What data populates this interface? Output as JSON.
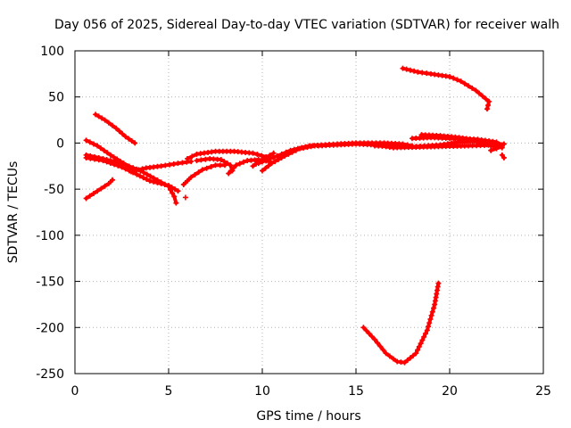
{
  "chart_data": {
    "type": "scatter",
    "title": "Day 056 of 2025, Sidereal Day-to-day VTEC variation (SDTVAR) for receiver walh",
    "xlabel": "GPS time / hours",
    "ylabel": "SDTVAR / TECUs",
    "xlim": [
      0,
      25
    ],
    "ylim": [
      -250,
      100
    ],
    "xticks": [
      0,
      5,
      10,
      15,
      20,
      25
    ],
    "yticks": [
      100,
      50,
      0,
      -50,
      -100,
      -150,
      -200,
      -250
    ],
    "grid": true,
    "marker": "plus",
    "color": "#ff0000",
    "series": [
      {
        "name": "track-1",
        "points": [
          [
            0.6,
            -60
          ],
          [
            1.2,
            -52
          ],
          [
            1.8,
            -44
          ],
          [
            2.0,
            -40
          ]
        ]
      },
      {
        "name": "track-2",
        "points": [
          [
            0.6,
            3
          ],
          [
            1.2,
            -3
          ],
          [
            1.9,
            -13
          ],
          [
            2.6,
            -22
          ],
          [
            3.2,
            -30
          ]
        ]
      },
      {
        "name": "track-3",
        "points": [
          [
            1.1,
            31
          ],
          [
            1.6,
            25
          ],
          [
            2.2,
            16
          ],
          [
            2.7,
            7
          ],
          [
            3.2,
            0
          ]
        ]
      },
      {
        "name": "track-4",
        "points": [
          [
            0.6,
            -13
          ],
          [
            1.5,
            -17
          ],
          [
            2.5,
            -22
          ],
          [
            3.5,
            -30
          ],
          [
            4.2,
            -38
          ],
          [
            5.0,
            -47
          ],
          [
            5.3,
            -58
          ],
          [
            5.4,
            -65
          ]
        ]
      },
      {
        "name": "track-5",
        "points": [
          [
            0.6,
            -16
          ],
          [
            1.5,
            -19
          ],
          [
            2.5,
            -26
          ],
          [
            3.3,
            -34
          ],
          [
            4.0,
            -41
          ],
          [
            5.0,
            -46
          ],
          [
            5.5,
            -52
          ]
        ]
      },
      {
        "name": "track-6",
        "points": [
          [
            3.0,
            -31
          ],
          [
            3.8,
            -27
          ],
          [
            4.6,
            -25
          ],
          [
            5.5,
            -22
          ],
          [
            6.2,
            -20
          ]
        ]
      },
      {
        "name": "track-7",
        "points": [
          [
            5.8,
            -45
          ],
          [
            6.2,
            -37
          ],
          [
            6.8,
            -29
          ],
          [
            7.5,
            -24
          ],
          [
            8.0,
            -24
          ]
        ]
      },
      {
        "name": "track-8",
        "points": [
          [
            6.0,
            -17
          ],
          [
            6.5,
            -12
          ],
          [
            7.5,
            -9
          ],
          [
            8.5,
            -9
          ],
          [
            9.5,
            -11
          ],
          [
            10.2,
            -15
          ]
        ]
      },
      {
        "name": "track-9",
        "points": [
          [
            6.5,
            -19
          ],
          [
            7.2,
            -17
          ],
          [
            7.8,
            -18
          ],
          [
            8.3,
            -24
          ],
          [
            8.4,
            -30
          ]
        ]
      },
      {
        "name": "track-10",
        "points": [
          [
            8.2,
            -33
          ],
          [
            8.6,
            -24
          ],
          [
            9.2,
            -19
          ],
          [
            9.8,
            -18
          ],
          [
            10.4,
            -20
          ]
        ]
      },
      {
        "name": "track-11",
        "points": [
          [
            9.8,
            -22
          ],
          [
            10.8,
            -14
          ],
          [
            11.5,
            -8
          ],
          [
            12.5,
            -3
          ],
          [
            14.0,
            -1
          ],
          [
            15.0,
            0
          ],
          [
            16.5,
            0
          ],
          [
            17.5,
            -1
          ],
          [
            18.0,
            -3
          ]
        ]
      },
      {
        "name": "track-12",
        "points": [
          [
            10.0,
            -30
          ],
          [
            10.5,
            -22
          ],
          [
            11.2,
            -14
          ],
          [
            12.0,
            -6
          ],
          [
            12.8,
            -3
          ]
        ]
      },
      {
        "name": "track-13",
        "points": [
          [
            9.5,
            -25
          ],
          [
            10.0,
            -18
          ],
          [
            10.6,
            -11
          ]
        ]
      },
      {
        "name": "track-14",
        "points": [
          [
            13.0,
            -3
          ],
          [
            15.0,
            -1
          ],
          [
            16.0,
            -2
          ],
          [
            17.0,
            -5
          ],
          [
            19.0,
            -4
          ],
          [
            21.0,
            -3
          ],
          [
            22.5,
            -2
          ]
        ]
      },
      {
        "name": "track-15",
        "points": [
          [
            16.0,
            -3
          ],
          [
            18.0,
            -4
          ],
          [
            19.5,
            -2
          ],
          [
            20.5,
            1
          ],
          [
            21.3,
            2
          ],
          [
            22.2,
            -3
          ],
          [
            22.8,
            -5
          ]
        ]
      },
      {
        "name": "track-16",
        "points": [
          [
            18.0,
            5
          ],
          [
            19.0,
            6
          ],
          [
            20.0,
            5
          ],
          [
            21.5,
            4
          ],
          [
            22.5,
            1
          ],
          [
            22.8,
            -2
          ]
        ]
      },
      {
        "name": "track-17",
        "points": [
          [
            18.5,
            9
          ],
          [
            19.5,
            8
          ],
          [
            20.5,
            6
          ],
          [
            21.5,
            3
          ],
          [
            22.5,
            -1
          ],
          [
            22.7,
            -3
          ]
        ]
      },
      {
        "name": "track-18",
        "points": [
          [
            22.2,
            -8
          ],
          [
            22.5,
            -6
          ],
          [
            22.8,
            -3
          ],
          [
            22.9,
            -1
          ]
        ]
      },
      {
        "name": "track-19",
        "points": [
          [
            22.8,
            -13
          ],
          [
            22.9,
            -16
          ]
        ]
      },
      {
        "name": "track-20",
        "points": [
          [
            17.5,
            81
          ],
          [
            18.3,
            77
          ],
          [
            19.0,
            75
          ],
          [
            20.0,
            72
          ],
          [
            20.6,
            67
          ],
          [
            21.4,
            57
          ],
          [
            22.1,
            45
          ],
          [
            22.0,
            37
          ]
        ]
      },
      {
        "name": "track-21",
        "points": [
          [
            15.4,
            -200
          ],
          [
            16.0,
            -213
          ],
          [
            16.6,
            -228
          ],
          [
            17.2,
            -237
          ],
          [
            17.6,
            -238
          ],
          [
            18.2,
            -228
          ],
          [
            18.8,
            -203
          ],
          [
            19.2,
            -175
          ],
          [
            19.4,
            -152
          ]
        ]
      },
      {
        "name": "track-22",
        "points": [
          [
            5.9,
            -59
          ]
        ]
      }
    ]
  }
}
